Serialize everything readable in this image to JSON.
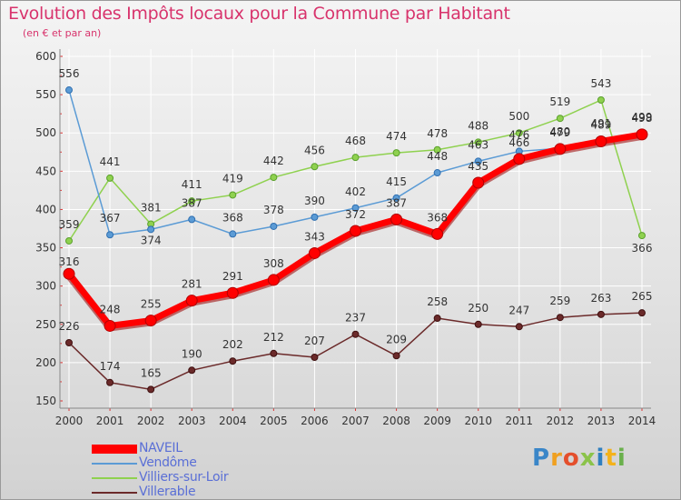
{
  "title": "Evolution des Impôts locaux pour la Commune par Habitant",
  "subtitle": "(en € et par an)",
  "logo_text": "Proxiti",
  "chart_data": {
    "type": "line",
    "title": "Evolution des Impôts locaux pour la Commune par Habitant",
    "subtitle": "(en € et par an)",
    "xlabel": "",
    "ylabel": "",
    "ylim": [
      150,
      600
    ],
    "yticks": [
      "150",
      "200",
      "250",
      "300",
      "350",
      "400",
      "450",
      "500",
      "550",
      "600"
    ],
    "categories": [
      "2000",
      "2001",
      "2002",
      "2003",
      "2004",
      "2005",
      "2006",
      "2007",
      "2008",
      "2009",
      "2010",
      "2011",
      "2012",
      "2013",
      "2014"
    ],
    "grid": true,
    "legend_position": "bottom-left",
    "series": [
      {
        "name": "NAVEIL",
        "color": "#ff0000",
        "values": [
          316,
          248,
          255,
          281,
          291,
          308,
          343,
          372,
          387,
          368,
          435,
          466,
          479,
          489,
          498
        ],
        "labels": [
          "316",
          "248",
          "255",
          "281",
          "291",
          "308",
          "343",
          "372",
          "387",
          "368",
          "435",
          "466",
          "479",
          "489",
          "498"
        ]
      },
      {
        "name": "Vendôme",
        "color": "#5b9bd5",
        "values": [
          556,
          367,
          374,
          387,
          368,
          378,
          390,
          402,
          415,
          448,
          463,
          476,
          480,
          491,
          499
        ],
        "labels": [
          "556",
          "367",
          "374",
          "387",
          "368",
          "378",
          "390",
          "402",
          "415",
          "448",
          "463",
          "476",
          "480",
          "491",
          "499"
        ]
      },
      {
        "name": "Villiers-sur-Loir",
        "color": "#8fd14f",
        "values": [
          359,
          441,
          381,
          411,
          419,
          442,
          456,
          468,
          474,
          478,
          488,
          500,
          519,
          543,
          366
        ],
        "labels": [
          "359",
          "441",
          "381",
          "411",
          "419",
          "442",
          "456",
          "468",
          "474",
          "478",
          "488",
          "500",
          "519",
          "543",
          "366"
        ]
      },
      {
        "name": "Villerable",
        "color": "#6b2a2a",
        "values": [
          226,
          174,
          165,
          190,
          202,
          212,
          207,
          237,
          209,
          258,
          250,
          247,
          259,
          263,
          265
        ],
        "labels": [
          "226",
          "174",
          "165",
          "190",
          "202",
          "212",
          "207",
          "237",
          "209",
          "258",
          "250",
          "247",
          "259",
          "263",
          "265"
        ]
      }
    ]
  }
}
